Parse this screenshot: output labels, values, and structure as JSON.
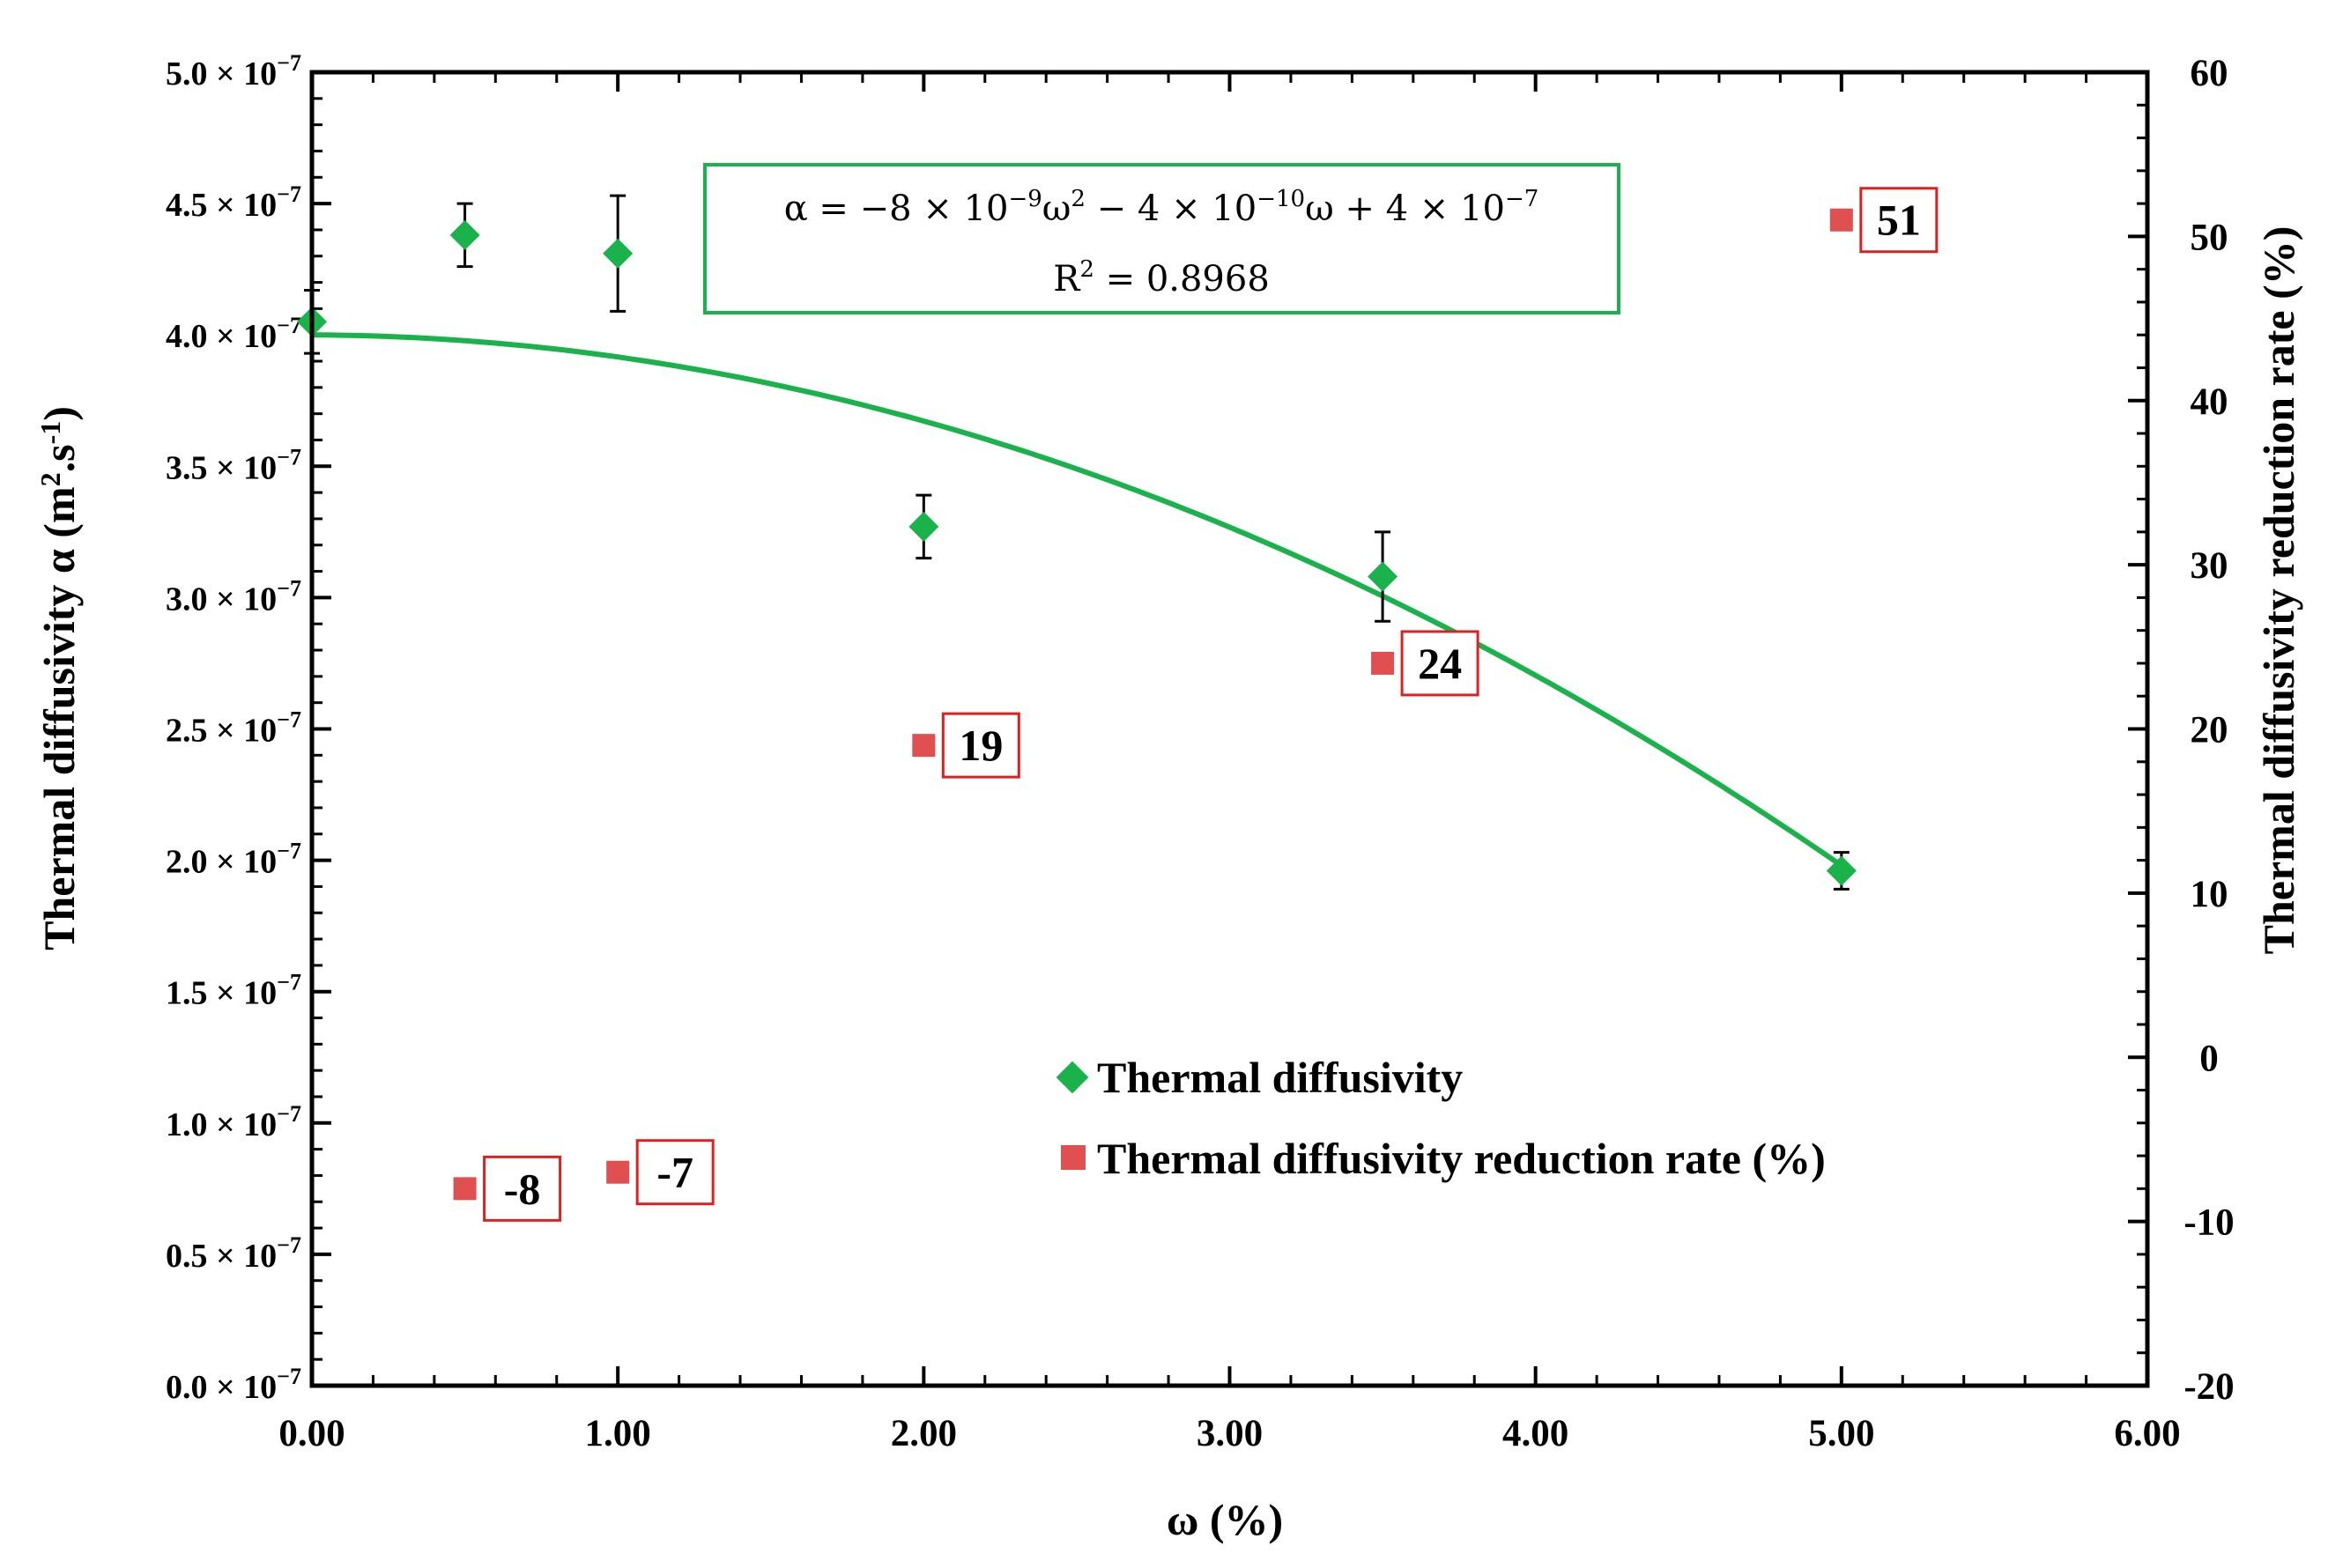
{
  "chart_data": {
    "type": "scatter",
    "xlabel": "ω (%)",
    "ylabel": "Thermal diffusivity α (m².s⁻¹)",
    "ylabel_parts": [
      "Thermal diffusivity α (m",
      "2",
      ".s",
      "-1",
      ")"
    ],
    "y2label": "Thermal diffusivity reduction rate (%)",
    "xlim": [
      0,
      6
    ],
    "ylim": [
      0,
      5e-07
    ],
    "y2lim": [
      -20,
      60
    ],
    "x_ticks": [
      "0.00",
      "1.00",
      "2.00",
      "3.00",
      "4.00",
      "5.00",
      "6.00"
    ],
    "y_tick_mantissas": [
      "0.0",
      "0.5",
      "1.0",
      "1.5",
      "2.0",
      "2.5",
      "3.0",
      "3.5",
      "4.0",
      "4.5",
      "5.0"
    ],
    "y_tick_base": "× 10",
    "y_tick_exponent": "−7",
    "y2_ticks": [
      "-20",
      "-10",
      "0",
      "10",
      "20",
      "30",
      "40",
      "50",
      "60"
    ],
    "series": [
      {
        "name": "Thermal diffusivity",
        "axis": "left",
        "marker": "diamond",
        "color": "#19b24b",
        "x": [
          0,
          0.5,
          1.0,
          2.0,
          3.5,
          5.0
        ],
        "y": [
          4.05e-07,
          4.38e-07,
          4.31e-07,
          3.27e-07,
          3.08e-07,
          1.96e-07
        ],
        "error": [
          1.2e-08,
          1.2e-08,
          2.2e-08,
          1.2e-08,
          1.7e-08,
          7e-09
        ]
      },
      {
        "name": "Thermal diffusivity reduction rate (%)",
        "axis": "right",
        "marker": "square",
        "color": "#e05050",
        "x": [
          0.5,
          1.0,
          2.0,
          3.5,
          5.0
        ],
        "y": [
          -8,
          -7,
          19,
          24,
          51
        ],
        "labels": [
          "-8",
          "-7",
          "19",
          "24",
          "51"
        ]
      }
    ],
    "fit": {
      "type": "quadratic",
      "coefficients": [
        -8e-09,
        -4e-10,
        4e-07
      ],
      "x_range": [
        0,
        5
      ],
      "color": "#19b24b",
      "equation_parts": [
        "α = −8 × 10",
        "−9",
        "ω",
        "2",
        " − 4 × 10",
        "−10",
        "ω + 4 × 10",
        "−7"
      ],
      "r2_parts": [
        "R",
        "2",
        " = 0.8968"
      ]
    },
    "legend_position": "lower-center",
    "annotation_box_color": "#19b24b",
    "label_box_color": "#e02020"
  }
}
